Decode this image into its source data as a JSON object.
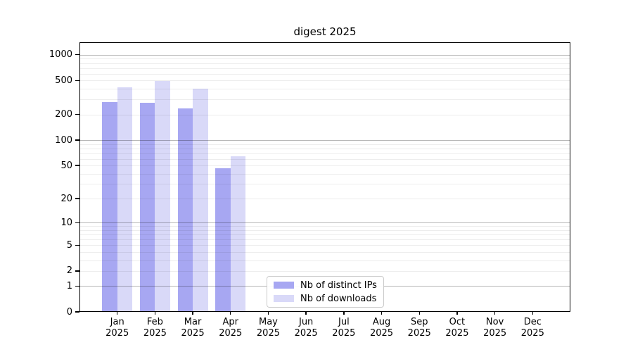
{
  "chart_data": {
    "type": "bar",
    "title": "digest 2025",
    "categories": [
      "Jan",
      "Feb",
      "Mar",
      "Apr",
      "May",
      "Jun",
      "Jul",
      "Aug",
      "Sep",
      "Oct",
      "Nov",
      "Dec"
    ],
    "year_label": "2025",
    "series": [
      {
        "name": "Nb of distinct IPs",
        "color": "#a7a7f2",
        "values": [
          277,
          272,
          235,
          46,
          0,
          0,
          0,
          0,
          0,
          0,
          0,
          0
        ]
      },
      {
        "name": "Nb of downloads",
        "color": "#d9d9f8",
        "values": [
          418,
          497,
          403,
          64,
          0,
          0,
          0,
          0,
          0,
          0,
          0,
          0
        ]
      }
    ],
    "y_scale": "log1p",
    "y_ticks_top_to_bottom": [
      1000,
      500,
      200,
      100,
      50,
      20,
      10,
      5,
      2,
      1,
      0
    ],
    "y_top_value": 1400,
    "grid": "horizontal; faint minor lines at 2-9 per decade, darker lines at powers of 10",
    "legend_position": "bottom-center inside plot area",
    "background_color": "#ffffff"
  }
}
